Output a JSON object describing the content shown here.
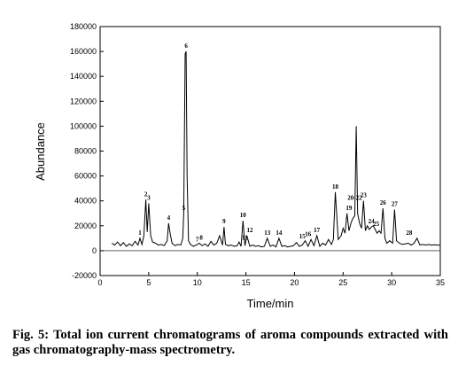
{
  "chart_data": {
    "type": "line",
    "xlabel": "Time/min",
    "ylabel": "Abundance",
    "xlim": [
      0,
      35
    ],
    "ylim": [
      -20000,
      180000
    ],
    "x_ticks": [
      "0",
      "5",
      "10",
      "15",
      "20",
      "25",
      "30",
      "35"
    ],
    "y_ticks": [
      "-20000",
      "0",
      "20000",
      "40000",
      "60000",
      "80000",
      "100000",
      "120000",
      "140000",
      "160000",
      "180000"
    ],
    "grid": false,
    "legend": "none",
    "series": [
      {
        "x": [
          1.2,
          1.5,
          1.8,
          2.1,
          2.4,
          2.7,
          3.0,
          3.3,
          3.6,
          3.9,
          4.1,
          4.3,
          4.5,
          4.7,
          4.85,
          5.0,
          5.2,
          5.4,
          5.7,
          6.0,
          6.3,
          6.6,
          6.9,
          7.05,
          7.2,
          7.4,
          7.7,
          8.0,
          8.3,
          8.5,
          8.6,
          8.75,
          8.85,
          8.95,
          9.1,
          9.3,
          9.6,
          9.9,
          10.2,
          10.5,
          10.8,
          11.1,
          11.4,
          11.7,
          12.0,
          12.3,
          12.6,
          12.75,
          12.9,
          13.2,
          13.5,
          13.8,
          14.1,
          14.3,
          14.5,
          14.7,
          14.9,
          15.1,
          15.4,
          15.7,
          16.0,
          16.3,
          16.6,
          16.9,
          17.2,
          17.5,
          17.8,
          18.1,
          18.4,
          18.7,
          19.0,
          19.3,
          19.6,
          19.9,
          20.2,
          20.5,
          20.8,
          21.1,
          21.4,
          21.7,
          22.0,
          22.3,
          22.6,
          22.9,
          23.2,
          23.5,
          23.8,
          24.0,
          24.2,
          24.5,
          24.8,
          25.0,
          25.2,
          25.4,
          25.6,
          25.8,
          26.0,
          26.2,
          26.35,
          26.5,
          26.7,
          26.9,
          27.1,
          27.3,
          27.5,
          27.7,
          27.9,
          28.1,
          28.3,
          28.5,
          28.7,
          28.9,
          29.1,
          29.3,
          29.5,
          29.8,
          30.1,
          30.3,
          30.5,
          30.8,
          31.1,
          31.4,
          31.7,
          32.0,
          32.3,
          32.6,
          32.9,
          33.2,
          33.5,
          33.8,
          34.1,
          34.4,
          34.7,
          35.0
        ],
        "y": [
          6000,
          4500,
          7000,
          4000,
          6500,
          3500,
          5500,
          4000,
          7500,
          4500,
          10000,
          5000,
          12000,
          41000,
          15000,
          38000,
          12000,
          7000,
          6000,
          4500,
          5000,
          4000,
          8000,
          22000,
          14000,
          6000,
          4000,
          5000,
          4500,
          10000,
          30000,
          158000,
          160000,
          60000,
          8000,
          5000,
          3500,
          4500,
          6000,
          4000,
          5500,
          3500,
          7500,
          4500,
          6000,
          12000,
          4500,
          19000,
          5000,
          4000,
          4500,
          3500,
          4000,
          7000,
          3500,
          24000,
          4000,
          12000,
          3500,
          4500,
          3500,
          4000,
          3000,
          3500,
          10000,
          3500,
          4500,
          3000,
          10000,
          3500,
          4000,
          3000,
          3500,
          4000,
          6500,
          3500,
          4500,
          8000,
          3500,
          9000,
          4000,
          12000,
          3500,
          6000,
          4500,
          9000,
          5000,
          9000,
          47000,
          9000,
          12000,
          18000,
          14000,
          30000,
          16000,
          22000,
          26000,
          28000,
          100000,
          30000,
          22000,
          18000,
          40000,
          16000,
          20000,
          17000,
          19000,
          20000,
          17000,
          14000,
          16000,
          14000,
          34000,
          10000,
          6000,
          8000,
          6000,
          33000,
          8000,
          6000,
          5000,
          5500,
          6000,
          4500,
          6000,
          10000,
          4500,
          5000,
          4500,
          5000,
          4500,
          4800,
          4500,
          4500
        ]
      }
    ],
    "peak_labels": [
      {
        "label": "1",
        "x": 4.1,
        "y": 10000
      },
      {
        "label": "2",
        "x": 4.7,
        "y": 41000
      },
      {
        "label": "3",
        "x": 5.0,
        "y": 38000
      },
      {
        "label": "4",
        "x": 7.05,
        "y": 22000
      },
      {
        "label": "5",
        "x": 8.6,
        "y": 30000
      },
      {
        "label": "6",
        "x": 8.85,
        "y": 160000
      },
      {
        "label": "7",
        "x": 10.0,
        "y": 4500
      },
      {
        "label": "8",
        "x": 10.4,
        "y": 6000
      },
      {
        "label": "9",
        "x": 12.75,
        "y": 19000
      },
      {
        "label": "10",
        "x": 14.7,
        "y": 24000
      },
      {
        "label": "11",
        "x": 14.9,
        "y": 6000
      },
      {
        "label": "12",
        "x": 15.4,
        "y": 12000
      },
      {
        "label": "13",
        "x": 17.2,
        "y": 10000
      },
      {
        "label": "14",
        "x": 18.4,
        "y": 10000
      },
      {
        "label": "15",
        "x": 20.8,
        "y": 7000
      },
      {
        "label": "16",
        "x": 21.4,
        "y": 9000
      },
      {
        "label": "17",
        "x": 22.3,
        "y": 12000
      },
      {
        "label": "18",
        "x": 24.2,
        "y": 47000
      },
      {
        "label": "19",
        "x": 25.6,
        "y": 30000
      },
      {
        "label": "20-22",
        "x": 26.2,
        "y": 38000
      },
      {
        "label": "23",
        "x": 27.1,
        "y": 40000
      },
      {
        "label": "24",
        "x": 27.9,
        "y": 19000
      },
      {
        "label": "25",
        "x": 28.4,
        "y": 17000
      },
      {
        "label": "26",
        "x": 29.1,
        "y": 34000
      },
      {
        "label": "27",
        "x": 30.3,
        "y": 33000
      },
      {
        "label": "28",
        "x": 31.8,
        "y": 10000
      }
    ]
  },
  "caption": "Fig. 5: Total ion current chromatograms of aroma compounds extracted with gas chromatography-mass spectrometry."
}
